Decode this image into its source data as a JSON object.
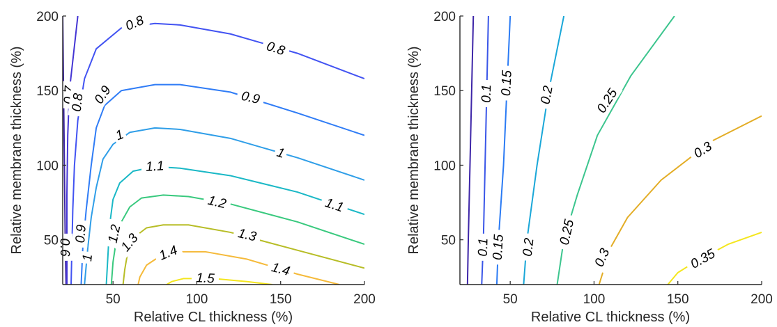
{
  "chart_data": [
    {
      "type": "contour",
      "xlabel": "Relative CL thickness (%)",
      "ylabel": "Relative membrane thickness (%)",
      "xlim": [
        20,
        200
      ],
      "ylim": [
        20,
        200
      ],
      "xticks": [
        "50",
        "100",
        "150",
        "200"
      ],
      "yticks": [
        "50",
        "100",
        "150",
        "200"
      ],
      "contours": [
        {
          "level": 0.6,
          "label": "0.6",
          "color": "#3e26a8",
          "points": [
            [
              20,
              200
            ],
            [
              20.5,
              150
            ],
            [
              21,
              100
            ],
            [
              21.5,
              50
            ],
            [
              22,
              20
            ]
          ],
          "label_positions": [
            [
              21,
              45
            ]
          ]
        },
        {
          "level": 0.7,
          "label": "0.7",
          "color": "#4435d4",
          "points": [
            [
              29,
              200
            ],
            [
              26,
              170
            ],
            [
              24,
              150
            ],
            [
              23,
              120
            ],
            [
              22.5,
              80
            ],
            [
              22.5,
              20
            ]
          ],
          "label_positions": [
            [
              24,
              147
            ]
          ]
        },
        {
          "level": 0.8,
          "label": "0.8",
          "color": "#4253f2",
          "points": [
            [
              200,
              158
            ],
            [
              160,
              175
            ],
            [
              120,
              188
            ],
            [
              90,
              194
            ],
            [
              75,
              195
            ],
            [
              55,
              192
            ],
            [
              40,
              178
            ],
            [
              33,
              158
            ],
            [
              29,
              130
            ],
            [
              27,
              100
            ],
            [
              26,
              70
            ],
            [
              25,
              20
            ]
          ],
          "label_positions": [
            [
              63,
              195
            ],
            [
              147,
              178
            ],
            [
              29,
              142
            ]
          ]
        },
        {
          "level": 0.9,
          "label": "0.9",
          "color": "#2f7cf6",
          "points": [
            [
              200,
              120
            ],
            [
              160,
              135
            ],
            [
              120,
              149
            ],
            [
              90,
              154
            ],
            [
              75,
              154
            ],
            [
              55,
              150
            ],
            [
              45,
              140
            ],
            [
              40,
              125
            ],
            [
              37,
              100
            ],
            [
              34,
              70
            ],
            [
              32,
              45
            ],
            [
              31,
              20
            ]
          ],
          "label_positions": [
            [
              44,
              147
            ],
            [
              132,
              145
            ],
            [
              31,
              54
            ]
          ]
        },
        {
          "level": 1.0,
          "label": "1",
          "color": "#2f9ee8",
          "points": [
            [
              200,
              90
            ],
            [
              160,
              105
            ],
            [
              120,
              118
            ],
            [
              90,
              124
            ],
            [
              75,
              125
            ],
            [
              60,
              122
            ],
            [
              50,
              114
            ],
            [
              44,
              104
            ],
            [
              40,
              85
            ],
            [
              37,
              65
            ],
            [
              35,
              45
            ],
            [
              33,
              20
            ]
          ],
          "label_positions": [
            [
              54,
              120
            ],
            [
              150,
              108
            ],
            [
              35,
              38
            ]
          ]
        },
        {
          "level": 1.1,
          "label": "1.1",
          "color": "#1ab8c6",
          "points": [
            [
              200,
              67
            ],
            [
              160,
              82
            ],
            [
              120,
              93
            ],
            [
              90,
              98
            ],
            [
              75,
              99
            ],
            [
              62,
              96
            ],
            [
              54,
              88
            ],
            [
              50,
              77
            ],
            [
              48,
              60
            ],
            [
              47,
              40
            ],
            [
              46,
              20
            ]
          ],
          "label_positions": [
            [
              75,
              99
            ],
            [
              182,
              73
            ]
          ]
        },
        {
          "level": 1.2,
          "label": "1.2",
          "color": "#39c97e",
          "points": [
            [
              200,
              47
            ],
            [
              160,
              62
            ],
            [
              120,
              74
            ],
            [
              95,
              79
            ],
            [
              80,
              80
            ],
            [
              67,
              78
            ],
            [
              60,
              72
            ],
            [
              55,
              62
            ],
            [
              52,
              50
            ],
            [
              50,
              35
            ],
            [
              49,
              20
            ]
          ],
          "label_positions": [
            [
              112,
              75
            ],
            [
              51,
              54
            ]
          ]
        },
        {
          "level": 1.3,
          "label": "1.3",
          "color": "#b7bd26",
          "points": [
            [
              200,
              31
            ],
            [
              160,
              43
            ],
            [
              120,
              55
            ],
            [
              95,
              60
            ],
            [
              80,
              60
            ],
            [
              70,
              58
            ],
            [
              63,
              52
            ],
            [
              59,
              43
            ],
            [
              57,
              30
            ],
            [
              56,
              20
            ]
          ],
          "label_positions": [
            [
              130,
              53
            ],
            [
              60,
              48
            ]
          ]
        },
        {
          "level": 1.4,
          "label": "1.4",
          "color": "#f5ba3a",
          "points": [
            [
              185,
              20
            ],
            [
              160,
              27
            ],
            [
              130,
              37
            ],
            [
              105,
              42
            ],
            [
              90,
              42
            ],
            [
              78,
              39
            ],
            [
              70,
              33
            ],
            [
              66,
              25
            ],
            [
              65,
              20
            ]
          ],
          "label_positions": [
            [
              83,
              41
            ],
            [
              150,
              30
            ]
          ]
        },
        {
          "level": 1.5,
          "label": "1.5",
          "color": "#f4e61e",
          "points": [
            [
              145,
              20
            ],
            [
              130,
              22
            ],
            [
              110,
              24
            ],
            [
              92,
              24
            ],
            [
              85,
              22
            ],
            [
              82,
              20
            ]
          ],
          "label_positions": [
            [
              105,
              24
            ]
          ]
        }
      ]
    },
    {
      "type": "contour",
      "xlabel": "Relative CL thickness (%)",
      "ylabel": "Relative membrane thickness (%)",
      "xlim": [
        20,
        200
      ],
      "ylim": [
        20,
        200
      ],
      "xticks": [
        "50",
        "100",
        "150",
        "200"
      ],
      "yticks": [
        "50",
        "100",
        "150",
        "200"
      ],
      "contours": [
        {
          "level": 0.05,
          "label": "",
          "color": "#3e26a8",
          "points": [
            [
              28,
              200
            ],
            [
              27,
              150
            ],
            [
              26,
              100
            ],
            [
              25,
              50
            ],
            [
              24.5,
              20
            ]
          ],
          "label_positions": []
        },
        {
          "level": 0.1,
          "label": "0.1",
          "color": "#3a56e8",
          "points": [
            [
              37,
              200
            ],
            [
              36,
              150
            ],
            [
              35,
              100
            ],
            [
              34,
              50
            ],
            [
              33,
              20
            ]
          ],
          "label_positions": [
            [
              36,
              148
            ],
            [
              34,
              45
            ]
          ]
        },
        {
          "level": 0.15,
          "label": "0.15",
          "color": "#2b7bf4",
          "points": [
            [
              50,
              200
            ],
            [
              48,
              150
            ],
            [
              46,
              100
            ],
            [
              43,
              50
            ],
            [
              42,
              20
            ]
          ],
          "label_positions": [
            [
              48,
              155
            ],
            [
              43,
              45
            ]
          ]
        },
        {
          "level": 0.2,
          "label": "0.2",
          "color": "#1aa7d8",
          "points": [
            [
              82,
              200
            ],
            [
              73,
              150
            ],
            [
              66,
              100
            ],
            [
              60,
              50
            ],
            [
              58,
              20
            ]
          ],
          "label_positions": [
            [
              72,
              147
            ],
            [
              61,
              45
            ]
          ]
        },
        {
          "level": 0.25,
          "label": "0.25",
          "color": "#3cc58e",
          "points": [
            [
              148,
              200
            ],
            [
              122,
              160
            ],
            [
              102,
              120
            ],
            [
              90,
              80
            ],
            [
              82,
              50
            ],
            [
              78,
              20
            ]
          ],
          "label_positions": [
            [
              108,
              143
            ],
            [
              84,
              55
            ]
          ]
        },
        {
          "level": 0.3,
          "label": "0.3",
          "color": "#e3ad26",
          "points": [
            [
              200,
              133
            ],
            [
              170,
              116
            ],
            [
              140,
              90
            ],
            [
              120,
              65
            ],
            [
              110,
              45
            ],
            [
              103,
              20
            ]
          ],
          "label_positions": [
            [
              165,
              110
            ],
            [
              105,
              38
            ]
          ]
        },
        {
          "level": 0.35,
          "label": "0.35",
          "color": "#f4e61e",
          "points": [
            [
              200,
              55
            ],
            [
              180,
              47
            ],
            [
              160,
              35
            ],
            [
              150,
              28
            ],
            [
              144,
              20
            ]
          ],
          "label_positions": [
            [
              165,
              37
            ]
          ]
        }
      ]
    }
  ]
}
